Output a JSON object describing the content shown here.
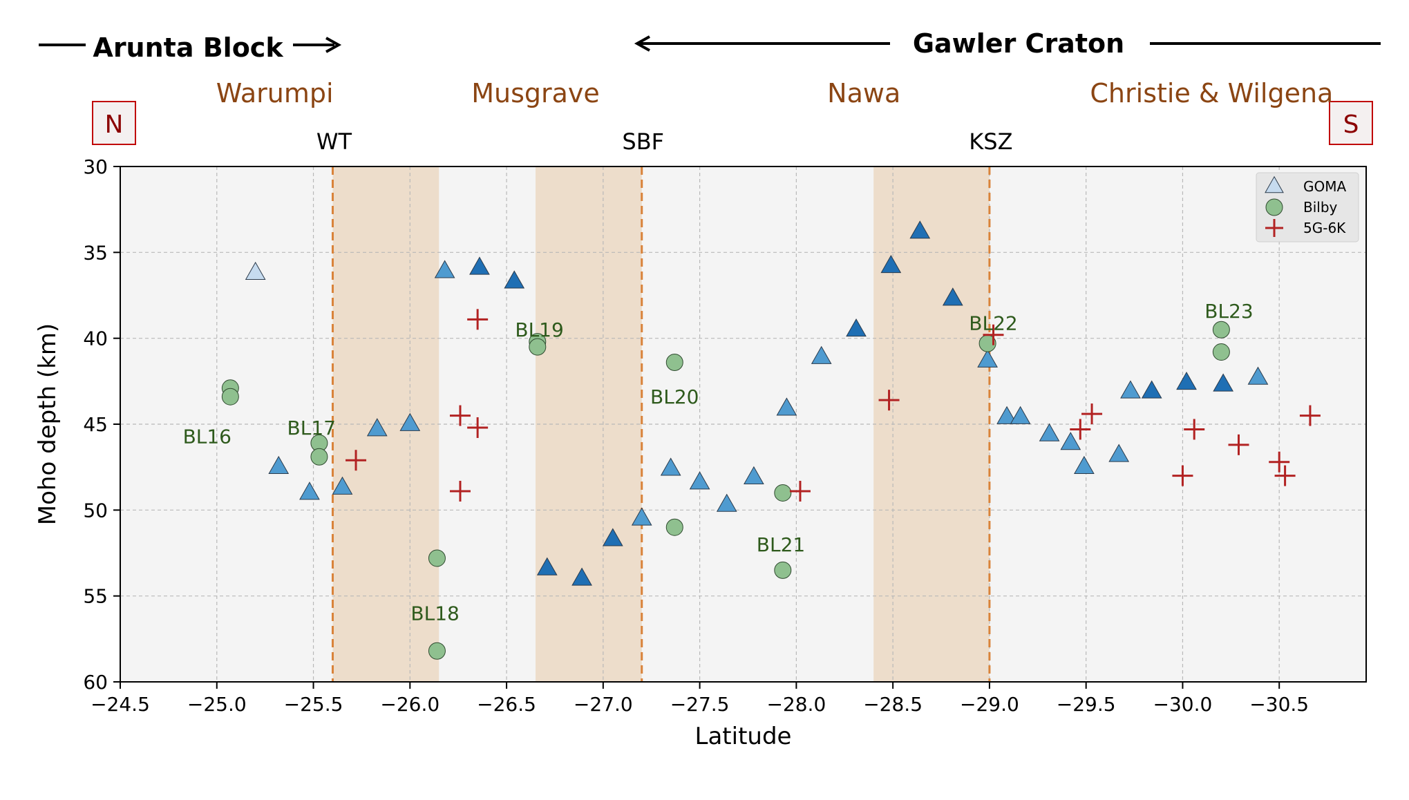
{
  "header": {
    "left_region": "Arunta Block",
    "right_region": "Gawler Craton",
    "north_label": "N",
    "south_label": "S"
  },
  "domains": [
    {
      "name": "Warumpi",
      "lat": -25.3
    },
    {
      "name": "Musgrave",
      "lat": -26.65
    },
    {
      "name": "Nawa",
      "lat": -28.35
    },
    {
      "name": "Christie & Wilgena",
      "lat": -30.15
    }
  ],
  "boundaries": [
    {
      "name": "WT",
      "lat": -25.6
    },
    {
      "name": "SBF",
      "lat": -27.2
    },
    {
      "name": "KSZ",
      "lat": -29.0
    }
  ],
  "colors": {
    "goma_light": "#c6dbef",
    "goma_mid": "#4f9bd0",
    "goma_dark": "#1f6fb4",
    "bilby": "#8fc08f",
    "5g6k": "#b22222",
    "shading": "#edddcb",
    "boundary_line": "#d9833a",
    "domain_text": "#8b4513",
    "station_text": "#2e5a1c",
    "ns_box": "#8b0000",
    "plot_bg": "#f4f4f4"
  },
  "chart_data": {
    "type": "scatter",
    "xlabel": "Latitude",
    "ylabel": "Moho depth (km)",
    "xlim": [
      -24.5,
      -30.95
    ],
    "ylim": [
      30,
      60
    ],
    "y_inverted": true,
    "x_ticks": [
      -24.5,
      -25.0,
      -25.5,
      -26.0,
      -26.5,
      -27.0,
      -27.5,
      -28.0,
      -28.5,
      -29.0,
      -29.5,
      -30.0,
      -30.5
    ],
    "x_tick_labels": [
      "−24.5",
      "−25.0",
      "−25.5",
      "−26.0",
      "−26.5",
      "−27.0",
      "−27.5",
      "−28.0",
      "−28.5",
      "−29.0",
      "−29.5",
      "−30.0",
      "−30.5"
    ],
    "y_ticks": [
      30,
      35,
      40,
      45,
      50,
      55,
      60
    ],
    "y_tick_labels": [
      "30",
      "35",
      "40",
      "45",
      "50",
      "55",
      "60"
    ],
    "grid": true,
    "legend_position": "top-right",
    "shaded_bands": [
      [
        -25.6,
        -26.15
      ],
      [
        -26.65,
        -27.2
      ],
      [
        -28.4,
        -29.0
      ]
    ],
    "series": [
      {
        "name": "GOMA",
        "marker": "triangle",
        "points": [
          {
            "x": -25.2,
            "y": 36.2,
            "shade": "light"
          },
          {
            "x": -25.32,
            "y": 47.5,
            "shade": "mid"
          },
          {
            "x": -25.48,
            "y": 49.0,
            "shade": "mid"
          },
          {
            "x": -25.65,
            "y": 48.7,
            "shade": "mid"
          },
          {
            "x": -25.83,
            "y": 45.3,
            "shade": "mid"
          },
          {
            "x": -26.0,
            "y": 45.0,
            "shade": "mid"
          },
          {
            "x": -26.18,
            "y": 36.1,
            "shade": "mid"
          },
          {
            "x": -26.36,
            "y": 35.9,
            "shade": "dark"
          },
          {
            "x": -26.54,
            "y": 36.7,
            "shade": "dark"
          },
          {
            "x": -26.71,
            "y": 53.4,
            "shade": "dark"
          },
          {
            "x": -26.89,
            "y": 54.0,
            "shade": "dark"
          },
          {
            "x": -27.05,
            "y": 51.7,
            "shade": "dark"
          },
          {
            "x": -27.2,
            "y": 50.5,
            "shade": "mid"
          },
          {
            "x": -27.35,
            "y": 47.6,
            "shade": "mid"
          },
          {
            "x": -27.5,
            "y": 48.4,
            "shade": "mid"
          },
          {
            "x": -27.64,
            "y": 49.7,
            "shade": "mid"
          },
          {
            "x": -27.78,
            "y": 48.1,
            "shade": "mid"
          },
          {
            "x": -27.95,
            "y": 44.1,
            "shade": "mid"
          },
          {
            "x": -28.13,
            "y": 41.1,
            "shade": "mid"
          },
          {
            "x": -28.31,
            "y": 39.5,
            "shade": "dark"
          },
          {
            "x": -28.49,
            "y": 35.8,
            "shade": "dark"
          },
          {
            "x": -28.64,
            "y": 33.8,
            "shade": "dark"
          },
          {
            "x": -28.81,
            "y": 37.7,
            "shade": "dark"
          },
          {
            "x": -28.99,
            "y": 41.3,
            "shade": "mid"
          },
          {
            "x": -29.09,
            "y": 44.6,
            "shade": "mid"
          },
          {
            "x": -29.16,
            "y": 44.6,
            "shade": "mid"
          },
          {
            "x": -29.31,
            "y": 45.6,
            "shade": "mid"
          },
          {
            "x": -29.42,
            "y": 46.1,
            "shade": "mid"
          },
          {
            "x": -29.49,
            "y": 47.5,
            "shade": "mid"
          },
          {
            "x": -29.67,
            "y": 46.8,
            "shade": "mid"
          },
          {
            "x": -29.73,
            "y": 43.1,
            "shade": "mid"
          },
          {
            "x": -29.84,
            "y": 43.1,
            "shade": "dark"
          },
          {
            "x": -30.02,
            "y": 42.6,
            "shade": "dark"
          },
          {
            "x": -30.21,
            "y": 42.7,
            "shade": "dark"
          },
          {
            "x": -30.39,
            "y": 42.3,
            "shade": "mid"
          }
        ]
      },
      {
        "name": "Bilby",
        "marker": "circle",
        "points": [
          {
            "x": -25.07,
            "y": 42.9
          },
          {
            "x": -25.07,
            "y": 43.4
          },
          {
            "x": -25.53,
            "y": 46.1
          },
          {
            "x": -25.53,
            "y": 46.9
          },
          {
            "x": -26.14,
            "y": 52.8
          },
          {
            "x": -26.14,
            "y": 58.2
          },
          {
            "x": -26.66,
            "y": 40.2
          },
          {
            "x": -26.66,
            "y": 40.5
          },
          {
            "x": -27.37,
            "y": 41.4
          },
          {
            "x": -27.37,
            "y": 51.0
          },
          {
            "x": -27.93,
            "y": 49.0
          },
          {
            "x": -27.93,
            "y": 53.5
          },
          {
            "x": -28.99,
            "y": 40.3
          },
          {
            "x": -30.2,
            "y": 39.5
          },
          {
            "x": -30.2,
            "y": 40.8
          }
        ]
      },
      {
        "name": "5G-6K",
        "marker": "plus",
        "points": [
          {
            "x": -25.72,
            "y": 47.1
          },
          {
            "x": -26.26,
            "y": 44.5
          },
          {
            "x": -26.35,
            "y": 45.2
          },
          {
            "x": -26.35,
            "y": 38.9
          },
          {
            "x": -26.26,
            "y": 48.9
          },
          {
            "x": -28.02,
            "y": 48.9
          },
          {
            "x": -28.48,
            "y": 43.6
          },
          {
            "x": -29.02,
            "y": 39.8
          },
          {
            "x": -29.47,
            "y": 45.3
          },
          {
            "x": -29.53,
            "y": 44.4
          },
          {
            "x": -30.0,
            "y": 48.0
          },
          {
            "x": -30.06,
            "y": 45.3
          },
          {
            "x": -30.29,
            "y": 46.2
          },
          {
            "x": -30.5,
            "y": 47.2
          },
          {
            "x": -30.53,
            "y": 48.0
          },
          {
            "x": -30.66,
            "y": 44.5
          }
        ]
      }
    ],
    "annotations": [
      {
        "text": "BL16",
        "x": -24.95,
        "y": 45.7
      },
      {
        "text": "BL17",
        "x": -25.49,
        "y": 45.2
      },
      {
        "text": "BL18",
        "x": -26.13,
        "y": 56.0
      },
      {
        "text": "BL19",
        "x": -26.67,
        "y": 39.5
      },
      {
        "text": "BL20",
        "x": -27.37,
        "y": 43.4
      },
      {
        "text": "BL21",
        "x": -27.92,
        "y": 52.0
      },
      {
        "text": "BL22",
        "x": -29.02,
        "y": 39.1
      },
      {
        "text": "BL23",
        "x": -30.24,
        "y": 38.4
      }
    ]
  }
}
